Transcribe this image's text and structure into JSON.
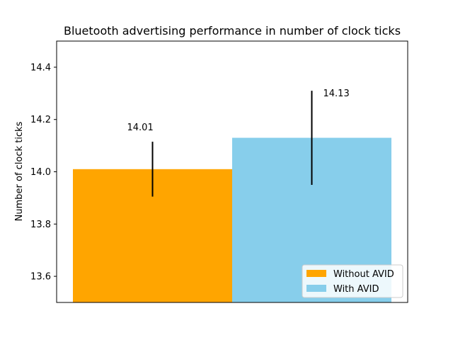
{
  "chart_data": {
    "type": "bar",
    "title": "Bluetooth advertising performance in number of clock ticks",
    "xlabel": "",
    "ylabel": "Number of clock ticks",
    "ylim": [
      13.5,
      14.5
    ],
    "yticks": [
      13.6,
      13.8,
      14.0,
      14.2,
      14.4
    ],
    "ytick_labels": [
      "13.6",
      "13.8",
      "14.0",
      "14.2",
      "14.4"
    ],
    "grid": false,
    "legend_position": "bottom-right",
    "series": [
      {
        "name": "Without AVID",
        "value": 14.01,
        "error": 0.105,
        "label": "14.01",
        "color": "#FFA500"
      },
      {
        "name": "With AVID",
        "value": 14.13,
        "error": 0.18,
        "label": "14.13",
        "color": "#87CEEB"
      }
    ]
  }
}
